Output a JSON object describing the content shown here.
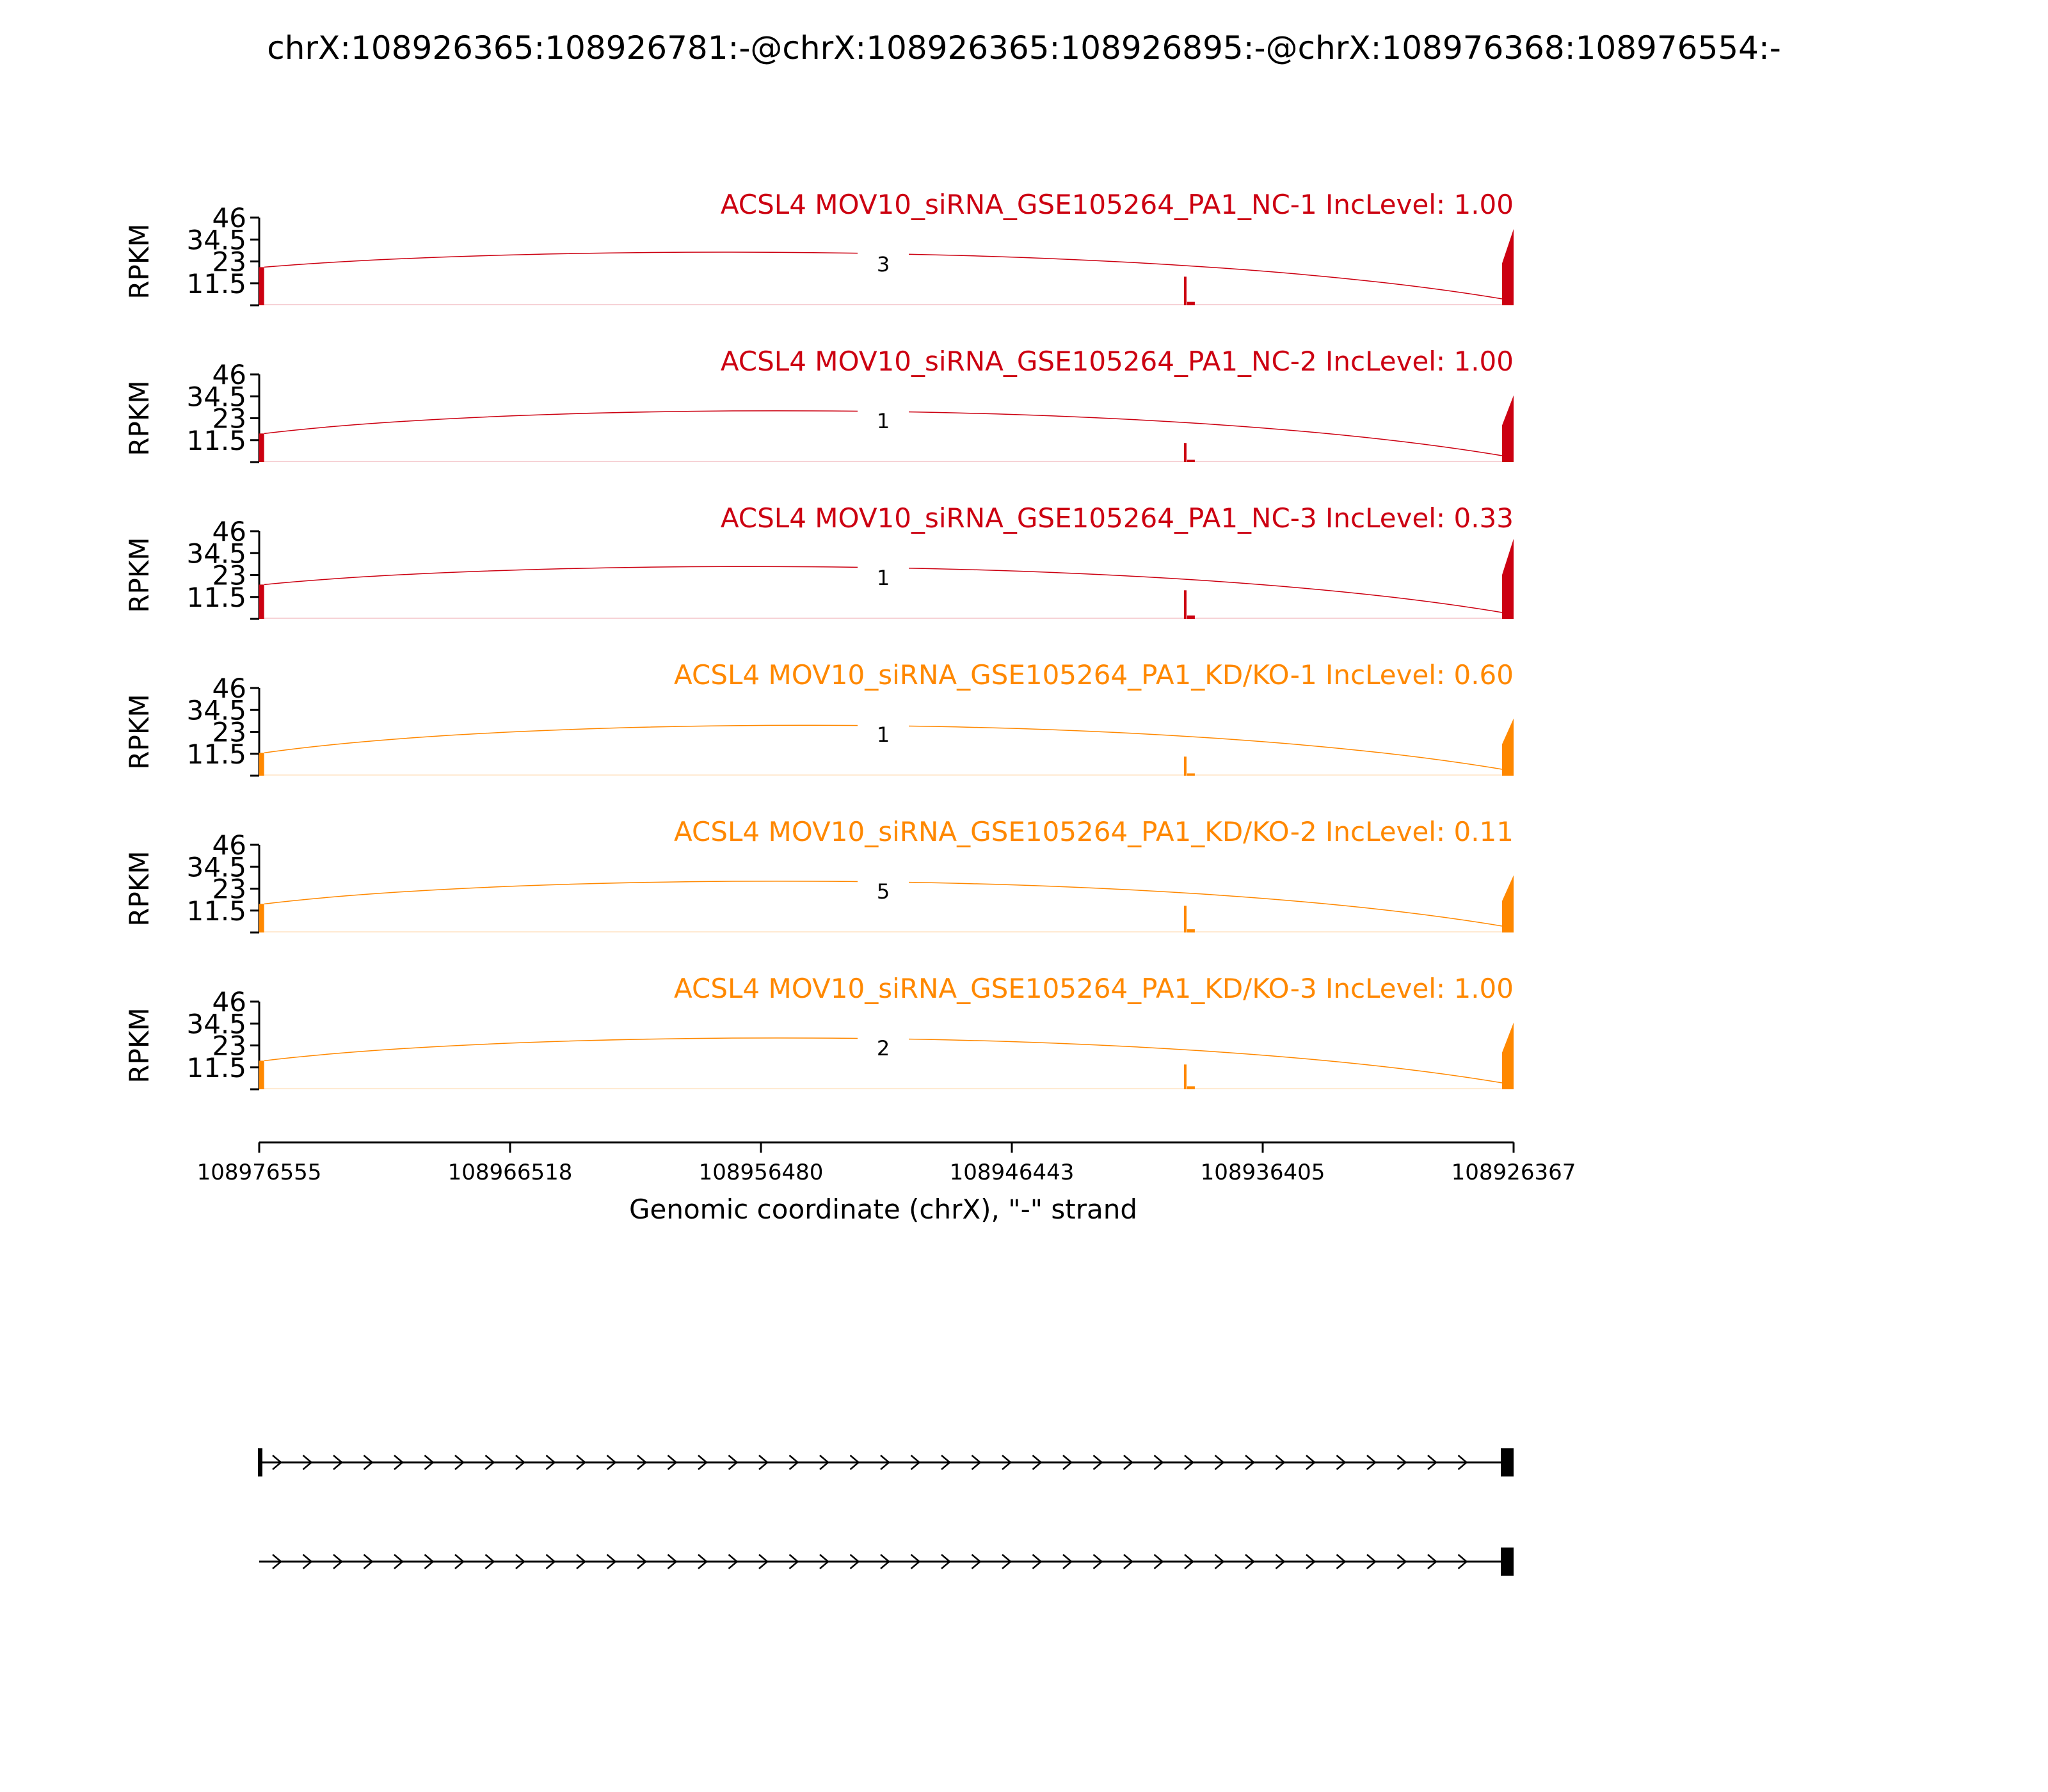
{
  "chart_data": {
    "type": "sashimi",
    "title": "chrX:108926365:108926781:-@chrX:108926365:108926895:-@chrX:108976368:108976554:-",
    "ylabel": "RPKM",
    "ylim": [
      0,
      46
    ],
    "yticks": [
      "46",
      "34.5",
      "23",
      "11.5"
    ],
    "xlabel": "Genomic coordinate (chrX), \"-\" strand",
    "xrange": [
      108976555,
      108926367
    ],
    "xticks": [
      "108976555",
      "108966518",
      "108956480",
      "108946443",
      "108936405",
      "108926367"
    ],
    "exons": [
      {
        "start": 108976554,
        "end": 108976368
      },
      {
        "start": 108939531,
        "end": 108939322
      },
      {
        "start": 108926895,
        "end": 108926365
      }
    ],
    "tracks": [
      {
        "label": "ACSL4 MOV10_siRNA_GSE105264_PA1_NC-1 IncLevel: 1.00",
        "color": "#cc0011",
        "junction_count": "3",
        "coverage": {
          "exon1": 20,
          "exon2": 15,
          "exon3": 40
        }
      },
      {
        "label": "ACSL4 MOV10_siRNA_GSE105264_PA1_NC-2 IncLevel: 1.00",
        "color": "#cc0011",
        "junction_count": "1",
        "coverage": {
          "exon1": 15,
          "exon2": 10,
          "exon3": 35
        }
      },
      {
        "label": "ACSL4 MOV10_siRNA_GSE105264_PA1_NC-3 IncLevel: 0.33",
        "color": "#cc0011",
        "junction_count": "1",
        "coverage": {
          "exon1": 18,
          "exon2": 15,
          "exon3": 42
        }
      },
      {
        "label": "ACSL4 MOV10_siRNA_GSE105264_PA1_KD/KO-1 IncLevel: 0.60",
        "color": "#ff8800",
        "junction_count": "1",
        "coverage": {
          "exon1": 12,
          "exon2": 10,
          "exon3": 30
        }
      },
      {
        "label": "ACSL4 MOV10_siRNA_GSE105264_PA1_KD/KO-2 IncLevel: 0.11",
        "color": "#ff8800",
        "junction_count": "5",
        "coverage": {
          "exon1": 15,
          "exon2": 14,
          "exon3": 30
        }
      },
      {
        "label": "ACSL4 MOV10_siRNA_GSE105264_PA1_KD/KO-3 IncLevel: 1.00",
        "color": "#ff8800",
        "junction_count": "2",
        "coverage": {
          "exon1": 15,
          "exon2": 13,
          "exon3": 35
        }
      }
    ],
    "isoforms": [
      {
        "exons": [
          1,
          3
        ]
      },
      {
        "exons": [
          3
        ]
      }
    ]
  }
}
